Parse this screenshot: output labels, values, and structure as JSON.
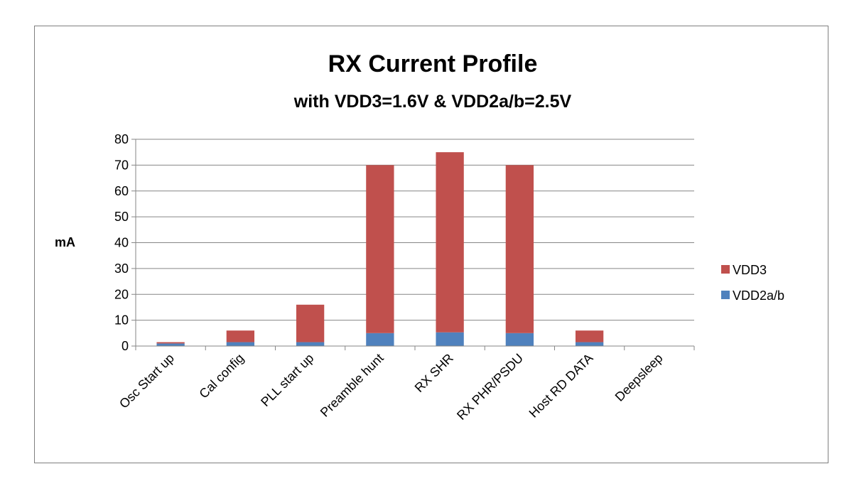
{
  "chart_data": {
    "type": "bar",
    "stacked": true,
    "title": "RX Current Profile",
    "subtitle": "with VDD3=1.6V & VDD2a/b=2.5V",
    "xlabel": "",
    "ylabel": "mA",
    "ylim": [
      0,
      80
    ],
    "yticks": [
      0,
      10,
      20,
      30,
      40,
      50,
      60,
      70,
      80
    ],
    "grid": true,
    "legend_position": "right",
    "categories": [
      "Osc Start up",
      "Cal config",
      "PLL start up",
      "Preamble hunt",
      "RX SHR",
      "RX PHR/PSDU",
      "Host RD DATA",
      "Deepsleep"
    ],
    "series": [
      {
        "name": "VDD2a/b",
        "color": "#4f81bd",
        "values": [
          1,
          1.5,
          1.5,
          5,
          5.3,
          5,
          1.5,
          0
        ]
      },
      {
        "name": "VDD3",
        "color": "#c0504d",
        "values": [
          0.5,
          4.5,
          14.5,
          65,
          69.7,
          65,
          4.5,
          0
        ]
      }
    ],
    "legend": [
      "VDD3",
      "VDD2a/b"
    ]
  }
}
